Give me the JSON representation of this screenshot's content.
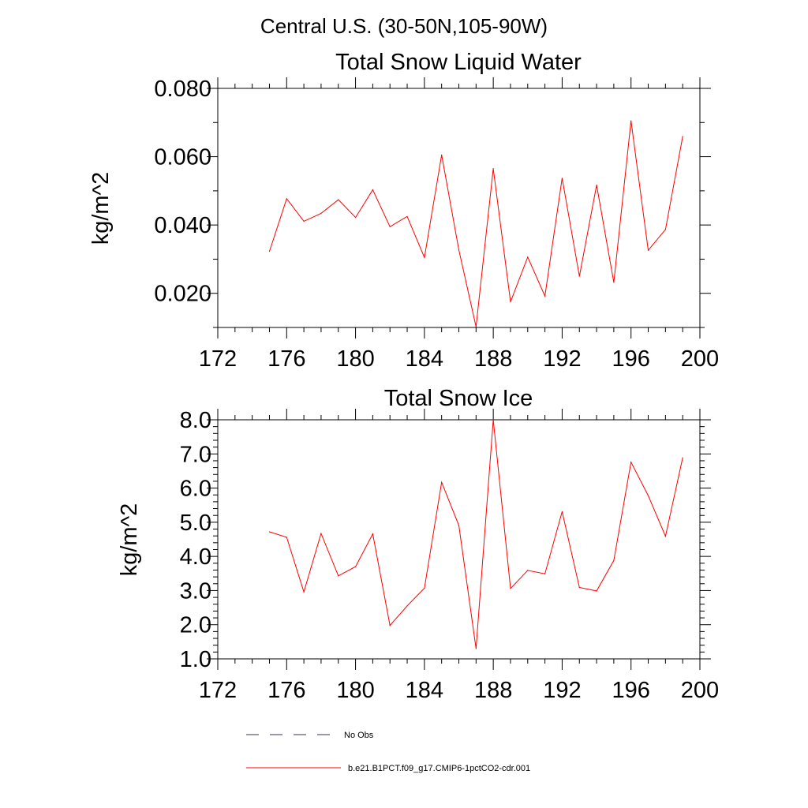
{
  "figure": {
    "main_title": "Central U.S. (30-50N,105-90W)"
  },
  "chart_data": [
    {
      "type": "line",
      "title": "Total Snow Liquid Water",
      "ylabel": "kg/m^2",
      "xlabel": "",
      "xlim": [
        172,
        200
      ],
      "ylim": [
        0.01,
        0.08
      ],
      "x_ticks": [
        172,
        176,
        180,
        184,
        188,
        192,
        196,
        200
      ],
      "x_tick_labels": [
        "172",
        "176",
        "180",
        "184",
        "188",
        "192",
        "196",
        "200"
      ],
      "y_ticks": [
        0.02,
        0.04,
        0.06,
        0.08
      ],
      "y_tick_labels": [
        "0.020",
        "0.040",
        "0.060",
        "0.080"
      ],
      "series": [
        {
          "name": "b.e21.B1PCT.f09_g17.CMIP6-1pctCO2-cdr.001",
          "color": "#ff0000",
          "x": [
            175,
            176,
            177,
            178,
            179,
            180,
            181,
            182,
            183,
            184,
            185,
            186,
            187,
            188,
            189,
            190,
            191,
            192,
            193,
            194,
            195,
            196,
            197,
            198,
            199
          ],
          "values": [
            0.0323,
            0.0477,
            0.0411,
            0.0434,
            0.0474,
            0.0422,
            0.0503,
            0.0395,
            0.0425,
            0.0305,
            0.0605,
            0.0327,
            0.0102,
            0.0565,
            0.0175,
            0.0306,
            0.0192,
            0.0537,
            0.025,
            0.0517,
            0.0232,
            0.0705,
            0.0326,
            0.0387,
            0.0659
          ]
        }
      ]
    },
    {
      "type": "line",
      "title": "Total Snow Ice",
      "ylabel": "kg/m^2",
      "xlabel": "",
      "xlim": [
        172,
        200
      ],
      "ylim": [
        1.0,
        8.0
      ],
      "x_ticks": [
        172,
        176,
        180,
        184,
        188,
        192,
        196,
        200
      ],
      "x_tick_labels": [
        "172",
        "176",
        "180",
        "184",
        "188",
        "192",
        "196",
        "200"
      ],
      "y_ticks": [
        1.0,
        2.0,
        3.0,
        4.0,
        5.0,
        6.0,
        7.0,
        8.0
      ],
      "y_tick_labels": [
        "1.0",
        "2.0",
        "3.0",
        "4.0",
        "5.0",
        "6.0",
        "7.0",
        "8.0"
      ],
      "series": [
        {
          "name": "b.e21.B1PCT.f09_g17.CMIP6-1pctCO2-cdr.001",
          "color": "#ff0000",
          "x": [
            175,
            176,
            177,
            178,
            179,
            180,
            181,
            182,
            183,
            184,
            185,
            186,
            187,
            188,
            189,
            190,
            191,
            192,
            193,
            194,
            195,
            196,
            197,
            198,
            199
          ],
          "values": [
            4.72,
            4.56,
            2.96,
            4.67,
            3.43,
            3.7,
            4.66,
            1.98,
            2.55,
            3.07,
            6.17,
            4.91,
            1.3,
            8.0,
            3.06,
            3.59,
            3.49,
            5.31,
            3.09,
            2.99,
            3.88,
            6.76,
            5.78,
            4.59,
            6.89
          ]
        }
      ]
    }
  ],
  "legend": {
    "items": [
      {
        "label": "No Obs",
        "color": "#333355",
        "style": "dashed"
      },
      {
        "label": "b.e21.B1PCT.f09_g17.CMIP6-1pctCO2-cdr.001",
        "color": "#ff0000",
        "style": "solid"
      }
    ]
  }
}
